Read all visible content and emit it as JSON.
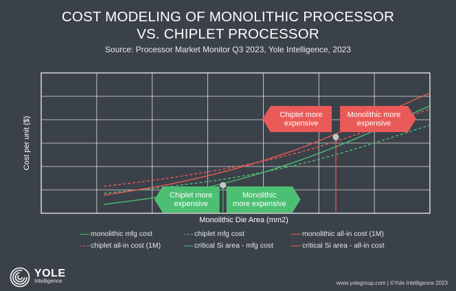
{
  "header": {
    "title_line1": "COST MODELING OF MONOLITHIC PROCESSOR",
    "title_line2": "VS. CHIPLET PROCESSOR",
    "source": "Source: Processor Market Monitor Q3 2023, Yole Intelligence, 2023"
  },
  "colors": {
    "background": "#3b4149",
    "green": "#4dbf73",
    "red": "#ea5a58",
    "grid": "#ffffff",
    "marker": "#c5c8cb"
  },
  "chart_data": {
    "type": "line",
    "title": "COST MODELING OF MONOLITHIC PROCESSOR VS. CHIPLET PROCESSOR",
    "xlabel": "Monolithic Die Area (mm2)",
    "ylabel": "Cost per unit ($)",
    "x_tick_labels": false,
    "y_tick_labels": false,
    "grid": true,
    "xlim": [
      0,
      620
    ],
    "ylim": [
      0,
      350
    ],
    "legend_position": "bottom",
    "series": [
      {
        "name": "monolithic mfg cost",
        "color": "#4dbf73",
        "dash": "solid",
        "x": [
          100,
          200,
          300,
          400,
          500,
          620
        ],
        "y": [
          22,
          44,
          78,
          125,
          185,
          268
        ]
      },
      {
        "name": "chiplet mfg cost",
        "color": "#4dbf73",
        "dash": "dashed",
        "x": [
          100,
          200,
          300,
          400,
          500,
          620
        ],
        "y": [
          50,
          66,
          87,
          118,
          160,
          220
        ]
      },
      {
        "name": "monolithic all-in cost (1M)",
        "color": "#ea5a58",
        "dash": "solid",
        "x": [
          100,
          200,
          300,
          400,
          500,
          620
        ],
        "y": [
          45,
          71,
          107,
          155,
          218,
          300
        ]
      },
      {
        "name": "chiplet all-in cost (1M)",
        "color": "#ea5a58",
        "dash": "dashed",
        "x": [
          100,
          200,
          300,
          400,
          500,
          620
        ],
        "y": [
          67,
          87,
          113,
          147,
          195,
          260
        ]
      },
      {
        "name": "critical Si area - mfg cost",
        "color": "#4dbf73",
        "dash": "solid",
        "marker_x": 290,
        "marker_y": 70
      },
      {
        "name": "critical Si area - all-in cost",
        "color": "#ea5a58",
        "dash": "solid",
        "marker_x": 470,
        "marker_y": 190
      }
    ],
    "annotations": [
      {
        "text": [
          "Chiplet more",
          "expensive"
        ],
        "color": "#4dbf73",
        "direction": "left"
      },
      {
        "text": [
          "Monolithic",
          "more expensive"
        ],
        "color": "#4dbf73",
        "direction": "right"
      },
      {
        "text": [
          "Chiplet more",
          "expensive"
        ],
        "color": "#ea5a58",
        "direction": "left"
      },
      {
        "text": [
          "Monolithic more",
          "expensive"
        ],
        "color": "#ea5a58",
        "direction": "right"
      }
    ]
  },
  "legend": {
    "items": [
      {
        "label": "monolithic mfg cost",
        "color": "#4dbf73",
        "dash": "solid"
      },
      {
        "label": "chiplet mfg cost",
        "color": "#4dbf73",
        "dash": "dashed"
      },
      {
        "label": "monolithic all-in cost (1M)",
        "color": "#ea5a58",
        "dash": "solid"
      },
      {
        "label": "chiplet all-in cost (1M)",
        "color": "#ea5a58",
        "dash": "dashed"
      },
      {
        "label": "critical Si area - mfg cost",
        "color": "#4dbf73",
        "dash": "solid"
      },
      {
        "label": "critical Si area - all-in cost",
        "color": "#ea5a58",
        "dash": "solid"
      }
    ]
  },
  "brand": {
    "name": "YOLE",
    "sub": "Intelligence",
    "logo_icon": "spiral-logo-icon"
  },
  "footer": {
    "text": "www.yolegroup.com | ©Yole Intelligence 2023"
  }
}
